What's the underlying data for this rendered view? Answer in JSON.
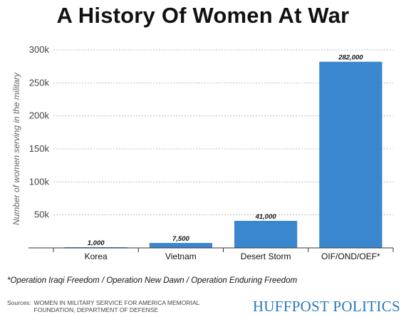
{
  "chart_data": {
    "type": "bar",
    "title": "A History Of Women At War",
    "ylabel": "Number of women serving in the military",
    "xlabel": "",
    "categories": [
      "Korea",
      "Vietnam",
      "Desert Storm",
      "OIF/OND/OEF*"
    ],
    "values": [
      1000,
      7500,
      41000,
      282000
    ],
    "data_labels": [
      "1,000",
      "7,500",
      "41,000",
      "282,000"
    ],
    "ylim": [
      0,
      300000
    ],
    "yticks": [
      50000,
      100000,
      150000,
      200000,
      250000,
      300000
    ],
    "ytick_labels": [
      "50k",
      "100k",
      "150k",
      "200k",
      "250k",
      "300k"
    ],
    "grid": true,
    "bar_color": "#3a87cf"
  },
  "footnote": "*Operation Iraqi Freedom / Operation New Dawn / Operation Enduring Freedom",
  "sources": {
    "label": "Sources:",
    "line1": "WOMEN IN MILITARY SERVICE FOR AMERICA MEMORIAL",
    "line2": "FOUNDATION, DEPARTMENT OF DEFENSE"
  },
  "brand": "HUFFPOST POLITICS"
}
